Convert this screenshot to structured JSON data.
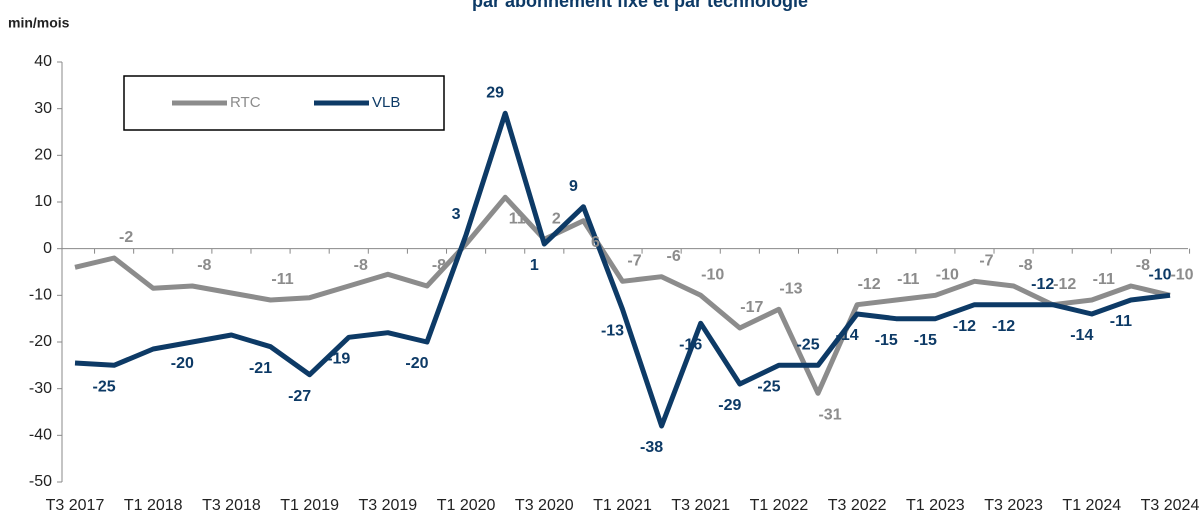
{
  "chart_data": {
    "type": "line",
    "title": "par abonnement fixe et par technologie",
    "y_label": "min/mois",
    "categories": [
      "T3 2017",
      null,
      "T1 2018",
      null,
      "T3 2018",
      null,
      "T1 2019",
      null,
      "T3 2019",
      null,
      "T1 2020",
      null,
      "T3 2020",
      null,
      "T1 2021",
      null,
      "T3 2021",
      null,
      "T1 2022",
      null,
      "T3 2022",
      null,
      "T1 2023",
      null,
      "T3 2023",
      null,
      "T1 2024",
      null,
      "T3 2024"
    ],
    "series": [
      {
        "name": "RTC",
        "color": "#8c8c8c",
        "values": [
          -4,
          -2,
          -8.5,
          -8,
          -9.5,
          -11,
          -10.5,
          -8,
          -5.5,
          -8,
          1,
          11,
          2,
          6,
          -7,
          -6,
          -10,
          -17,
          -13,
          -31,
          -12,
          -11,
          -10,
          -7,
          -8,
          -12,
          -11,
          -8,
          -10
        ],
        "value_labels": [
          null,
          "-2",
          null,
          "-8",
          null,
          "-11",
          null,
          "-8",
          null,
          "-8",
          null,
          "11",
          "2",
          "6",
          "-7",
          "-6",
          "-10",
          "-17",
          "-13",
          "-31",
          "-12",
          "-11",
          "-10",
          "-7",
          "-8",
          "-12",
          "-11",
          "-8",
          "-10"
        ]
      },
      {
        "name": "VLB",
        "color": "#0d3a66",
        "values": [
          -24.5,
          -25,
          -21.5,
          -20,
          -18.5,
          -21,
          -27,
          -19,
          -18,
          -20,
          3,
          29,
          1,
          9,
          -13,
          -38,
          -16,
          -29,
          -25,
          -25,
          -14,
          -15,
          -15,
          -12,
          -12,
          -12,
          -14,
          -11,
          -10
        ],
        "value_labels": [
          null,
          "-25",
          null,
          "-20",
          null,
          "-21",
          "-27",
          "-19",
          null,
          "-20",
          "3",
          "29",
          "1",
          "9",
          "-13",
          "-38",
          "-16",
          "-29",
          "-25",
          "-25",
          "-14",
          "-15",
          "-15",
          "-12",
          "-12",
          "-12",
          "-14",
          "-11",
          "-10"
        ]
      }
    ],
    "ylim": [
      -50,
      40
    ],
    "yticks": [
      -50,
      -40,
      -30,
      -20,
      -10,
      0,
      10,
      20,
      30,
      40
    ],
    "legend": "top-left"
  }
}
